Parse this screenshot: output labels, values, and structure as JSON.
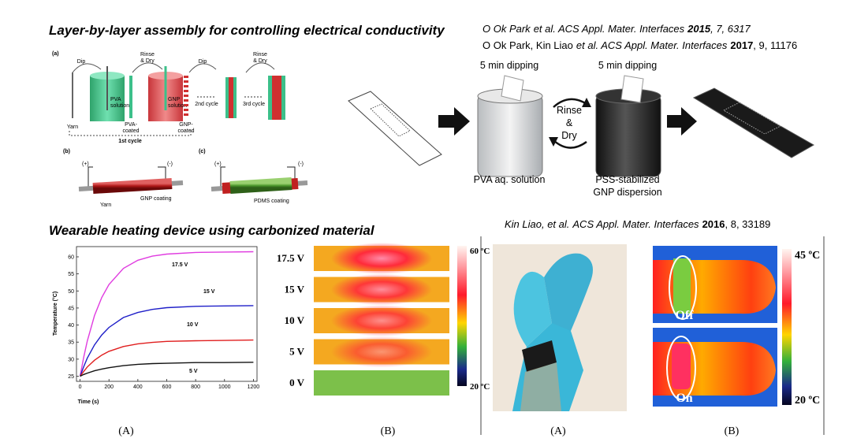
{
  "heading_top": "Layer-by-layer assembly for controlling electrical conductivity",
  "refs_top": [
    {
      "authors": "O Ok Park",
      "journal": "et al. ACS Appl. Mater. Interfaces",
      "year": "2015",
      "rest": ", 7, 6317"
    },
    {
      "authors": "O Ok Park, Kin Liao",
      "journal": "et al. ACS Appl. Mater. Interfaces",
      "year": "2017",
      "rest": ", 9, 11176"
    }
  ],
  "diagram": {
    "panel_a": "(a)",
    "dip_1": "Dip",
    "rinse_1": [
      "Rinse",
      "& Dry"
    ],
    "dip_2": "Dip",
    "rinse_2": [
      "Rinse",
      "& Dry"
    ],
    "yarn": "Yarn",
    "pva_solution": [
      "PVA",
      "solution"
    ],
    "pva_coated": [
      "PVA-",
      "coated"
    ],
    "gnp_solution": [
      "GNP",
      "solution"
    ],
    "gnp_coated": [
      "GNP-",
      "coated"
    ],
    "cycle_2": "2nd cycle",
    "cycle_3": "3rd cycle",
    "cycle_1": "1st cycle",
    "panel_b": "(b)",
    "panel_c": "(c)",
    "plus_b": "(+)",
    "minus_b": "(-)",
    "gnp_coating": "GNP coating",
    "yarn_b": "Yarn",
    "plus_c": "(+)",
    "minus_c": "(-)",
    "pdms_coating": "PDMS coating"
  },
  "process": {
    "dip_left": "5 min dipping",
    "dip_right": "5 min dipping",
    "rinse": [
      "Rinse",
      "&",
      "Dry"
    ],
    "left_beaker": "PVA aq. solution",
    "right_beaker": [
      "PSS-stabilized",
      "GNP dispersion"
    ]
  },
  "heading_bottom": "Wearable heating device using carbonized material",
  "ref_bottom": {
    "authors": "Kin Liao, et al.",
    "journal": "ACS Appl. Mater. Interfaces",
    "year": "2016",
    "rest": ", 8, 33189"
  },
  "chart_caption": "(A)",
  "chart_data": {
    "type": "line",
    "xlabel": "Time (s)",
    "ylabel": "Temperature (°C)",
    "x": [
      0,
      25,
      50,
      100,
      150,
      200,
      300,
      400,
      500,
      600,
      800,
      1000,
      1200
    ],
    "series": [
      {
        "name": "17.5 V",
        "color": "#e03ce0",
        "values": [
          25,
          30.6,
          35.3,
          42.8,
          48.1,
          51.9,
          56.6,
          59.0,
          60.2,
          60.8,
          61.3,
          61.4,
          61.5
        ]
      },
      {
        "name": "15 V",
        "color": "#1e1ec8",
        "values": [
          25,
          27.8,
          30.3,
          34.2,
          37.1,
          39.3,
          42.2,
          43.7,
          44.6,
          45.1,
          45.5,
          45.6,
          45.7
        ]
      },
      {
        "name": "10 V",
        "color": "#e01e1e",
        "values": [
          25,
          26.4,
          27.7,
          29.7,
          31.2,
          32.3,
          33.7,
          34.5,
          34.9,
          35.2,
          35.4,
          35.5,
          35.6
        ]
      },
      {
        "name": "5 V",
        "color": "#111111",
        "values": [
          25,
          25.5,
          25.9,
          26.6,
          27.1,
          27.5,
          28.1,
          28.5,
          28.7,
          28.8,
          29.0,
          29.0,
          29.1
        ]
      }
    ],
    "xlim": [
      -25,
      1225
    ],
    "ylim": [
      23.5,
      63
    ],
    "xticks": [
      0,
      200,
      400,
      600,
      800,
      1000,
      1200
    ],
    "yticks": [
      25,
      30,
      35,
      40,
      45,
      50,
      55,
      60
    ]
  },
  "strips": {
    "voltages": [
      "17.5 V",
      "15 V",
      "10 V",
      "5 V",
      "0 V"
    ],
    "scale_max": "60 ºC",
    "scale_min": "20 ºC",
    "caption": "(B)"
  },
  "hand": {
    "caption_a": "(A)",
    "off": "Off",
    "on": "On",
    "scale_max": "45 ºC",
    "scale_min": "20 ºC",
    "caption_b": "(B)"
  }
}
